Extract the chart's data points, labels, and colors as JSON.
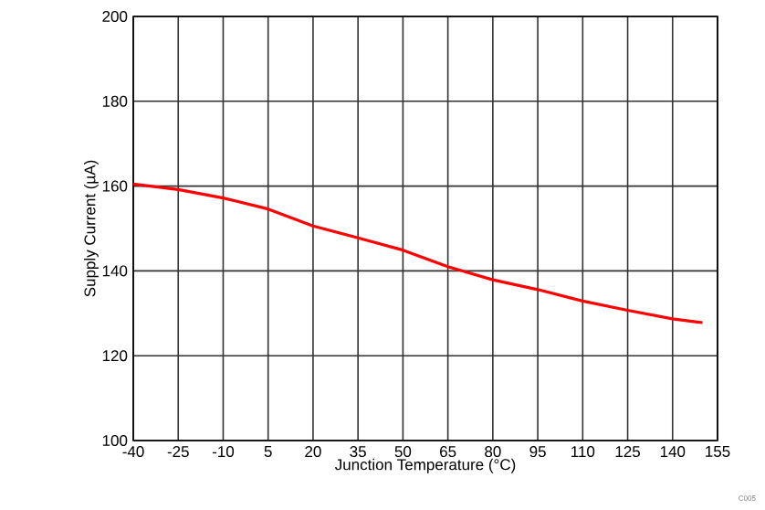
{
  "chart_data": {
    "type": "line",
    "xlabel": "Junction Temperature (°C)",
    "ylabel": "Supply Current (µA)",
    "x": [
      -40,
      -25,
      -10,
      5,
      20,
      35,
      50,
      65,
      80,
      95,
      110,
      125,
      140,
      150
    ],
    "series": [
      {
        "color": "#ff0000",
        "values": [
          160.5,
          159.2,
          157.2,
          154.6,
          150.6,
          147.8,
          144.9,
          141,
          137.9,
          135.6,
          132.9,
          130.7,
          128.7,
          127.8
        ]
      }
    ],
    "xlim": [
      -40,
      155
    ],
    "ylim": [
      100,
      200
    ],
    "xticks": [
      -40,
      -25,
      -10,
      5,
      20,
      35,
      50,
      65,
      80,
      95,
      110,
      125,
      140,
      155
    ],
    "yticks": [
      100,
      120,
      140,
      160,
      180,
      200
    ],
    "grid": true,
    "marker": "none",
    "line_style": "solid",
    "annotations": [
      "C005"
    ]
  }
}
